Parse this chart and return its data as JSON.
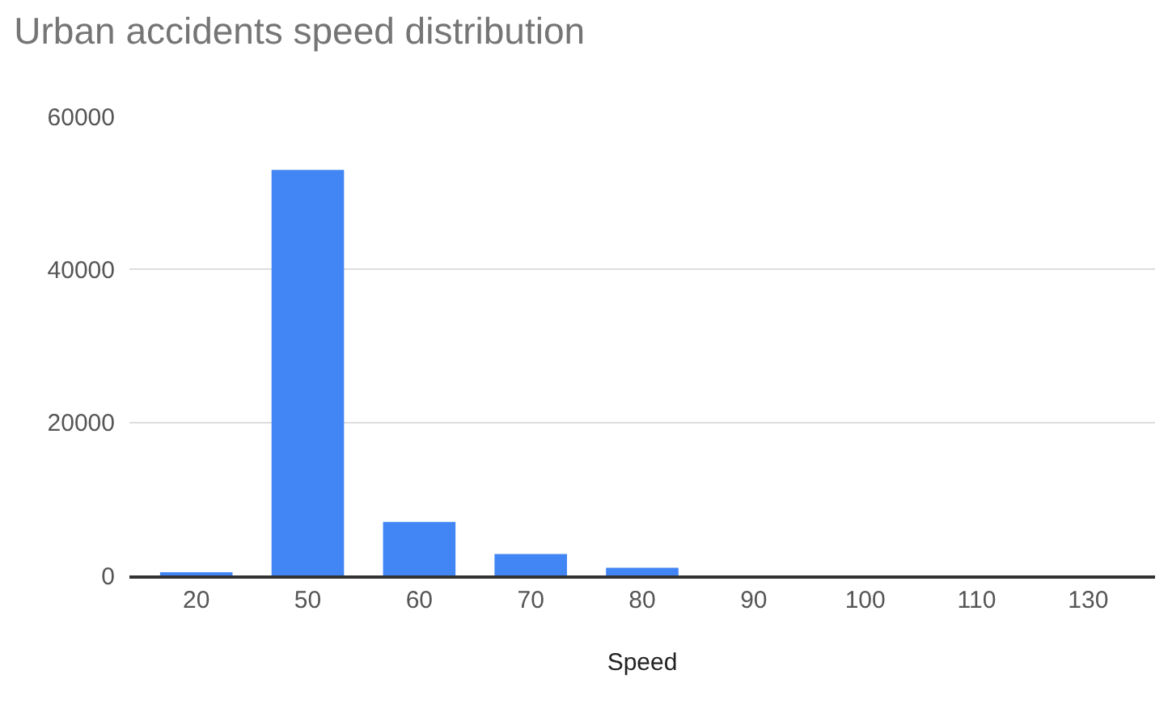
{
  "chart_data": {
    "type": "bar",
    "title": "Urban accidents speed distribution",
    "xlabel": "Speed",
    "categories": [
      "20",
      "50",
      "60",
      "70",
      "80",
      "90",
      "100",
      "110",
      "130"
    ],
    "values": [
      400,
      53000,
      7000,
      2800,
      1000,
      0,
      0,
      0,
      0
    ],
    "color": "#4285f4",
    "ylim": [
      0,
      60000
    ],
    "yticks": [
      0,
      20000,
      40000,
      60000
    ],
    "grid": "y"
  }
}
